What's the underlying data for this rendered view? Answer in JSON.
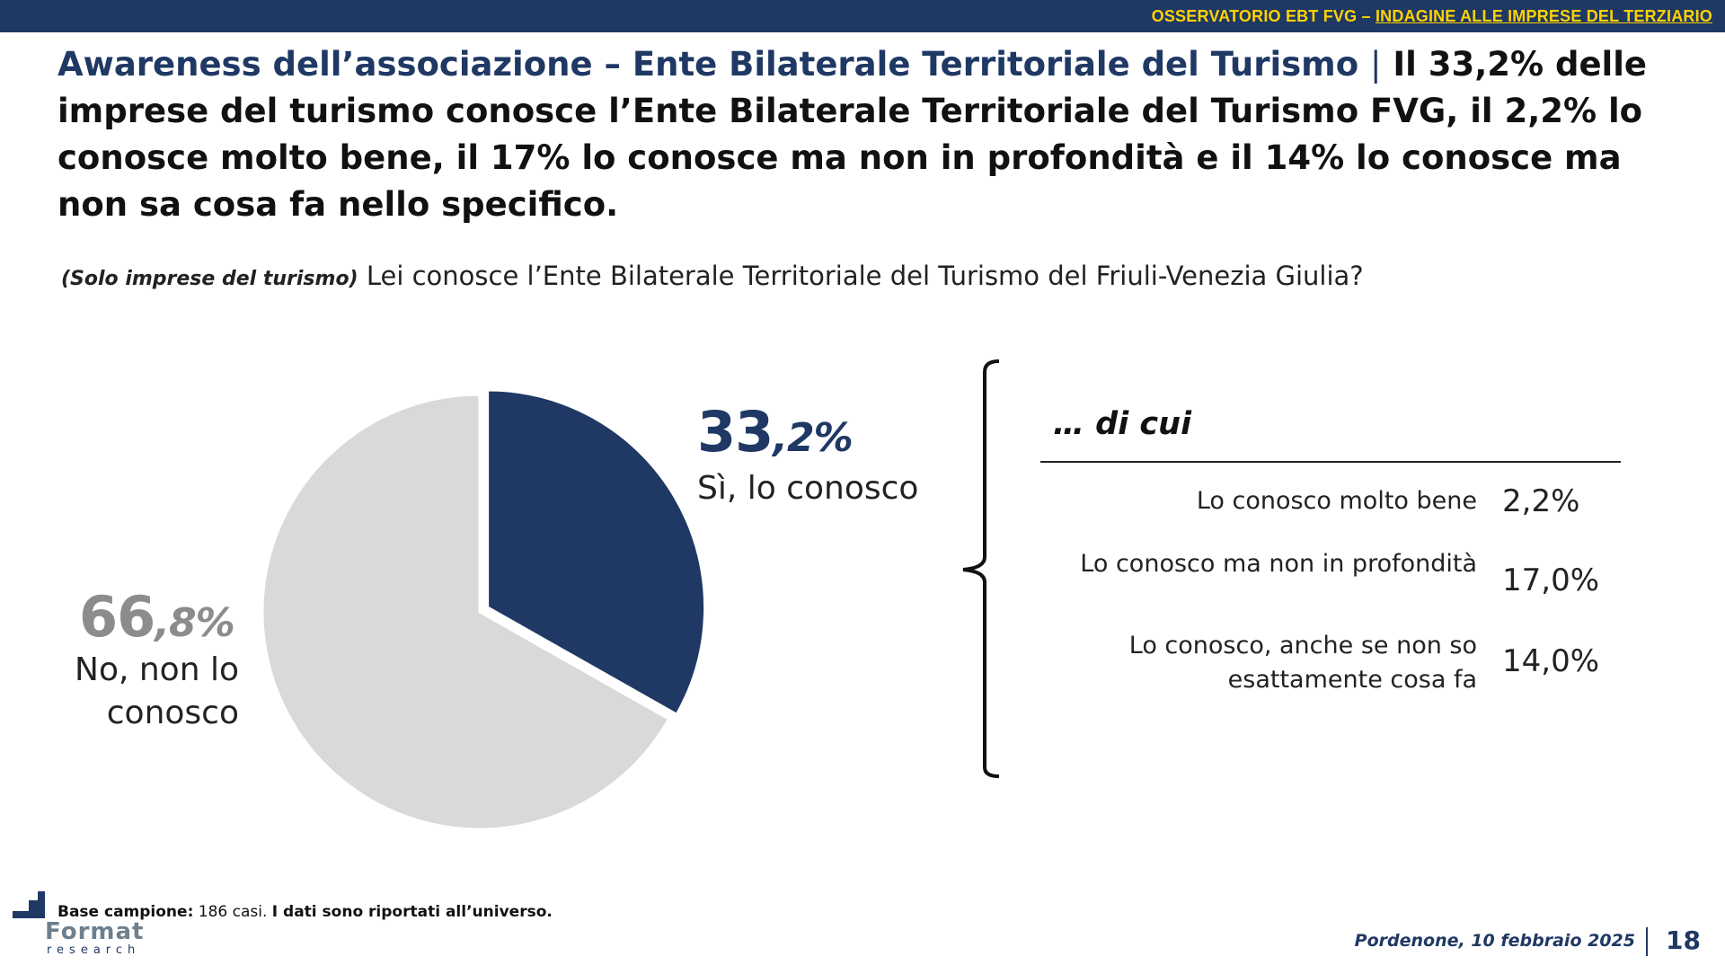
{
  "header": {
    "observatory": "OSSERVATORIO EBT FVG –",
    "survey": "INDAGINE ALLE IMPRESE DEL TERZIARIO"
  },
  "title": {
    "highlight": "Awareness dell’associazione – Ente Bilaterale Territoriale del Turismo",
    "separator": "|",
    "text": "Il 33,2% delle imprese del turismo conosce l’Ente Bilaterale Territoriale del Turismo FVG, il 2,2% lo conosce molto bene, il 17% lo conosce ma non in profondità e il 14% lo conosce ma non sa cosa fa nello specifico."
  },
  "question": {
    "note": "(Solo imprese del turismo)",
    "text": "Lei conosce l’Ente Bilaterale Territoriale del Turismo del Friuli-Venezia Giulia?"
  },
  "chart_data": {
    "type": "pie",
    "slices": [
      {
        "label": "Sì, lo conosco",
        "value": 33.2,
        "value_int": "33",
        "value_dec": ",2%",
        "color": "#1f3864",
        "exploded": true
      },
      {
        "label": "No, non lo conosco",
        "value": 66.8,
        "value_int": "66",
        "value_dec": ",8%",
        "color": "#d9d9d9",
        "exploded": false
      }
    ],
    "breakdown": {
      "title": "… di cui",
      "items": [
        {
          "label": "Lo conosco molto bene",
          "value": "2,2%"
        },
        {
          "label": "Lo conosco ma non in profondità",
          "value": "17,0%"
        },
        {
          "label": "Lo conosco, anche se non so esattamente cosa fa",
          "value": "14,0%"
        }
      ]
    }
  },
  "footer": {
    "base_label": "Base campione:",
    "base_value": "186 casi.",
    "base_note": "I dati sono riportati all’universo.",
    "logo_word": "Format",
    "logo_sub": "research",
    "date": "Pordenone, 10 febbraio 2025",
    "page": "18"
  },
  "colors": {
    "navy": "#1f3864",
    "accent_yellow": "#ffd200",
    "pie_grey": "#d9d9d9",
    "grey_text": "#8c8c8c"
  }
}
